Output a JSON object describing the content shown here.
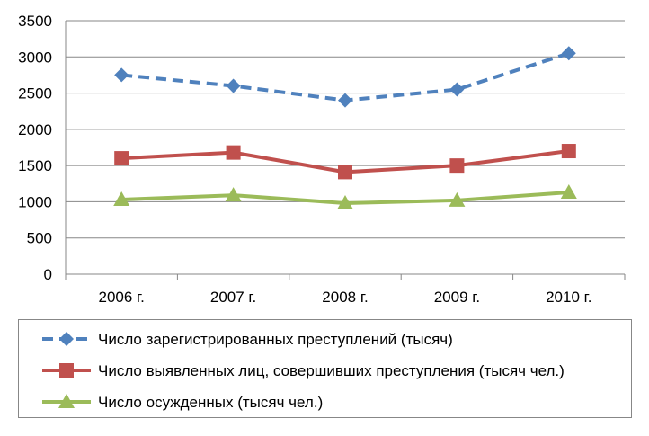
{
  "chart_data": {
    "type": "line",
    "categories": [
      "2006 г.",
      "2007 г.",
      "2008 г.",
      "2009 г.",
      "2010 г."
    ],
    "ylim": [
      0,
      3500
    ],
    "yticks": [
      0,
      500,
      1000,
      1500,
      2000,
      2500,
      3000,
      3500
    ],
    "grid": true,
    "legend_placement": "bottom",
    "series": [
      {
        "name": "Число зарегистрированных преступлений (тысяч)",
        "values": [
          2750,
          2600,
          2400,
          2550,
          3050
        ],
        "color": "#4F81BD",
        "marker": "diamond",
        "dash": true
      },
      {
        "name": "Число выявленных лиц, совершивших преступления (тысяч чел.)",
        "values": [
          1600,
          1680,
          1410,
          1500,
          1700
        ],
        "color": "#C0504D",
        "marker": "square",
        "dash": false
      },
      {
        "name": "Число осужденных (тысяч чел.)",
        "values": [
          1030,
          1090,
          980,
          1020,
          1130
        ],
        "color": "#9BBB59",
        "marker": "triangle",
        "dash": false
      }
    ]
  }
}
